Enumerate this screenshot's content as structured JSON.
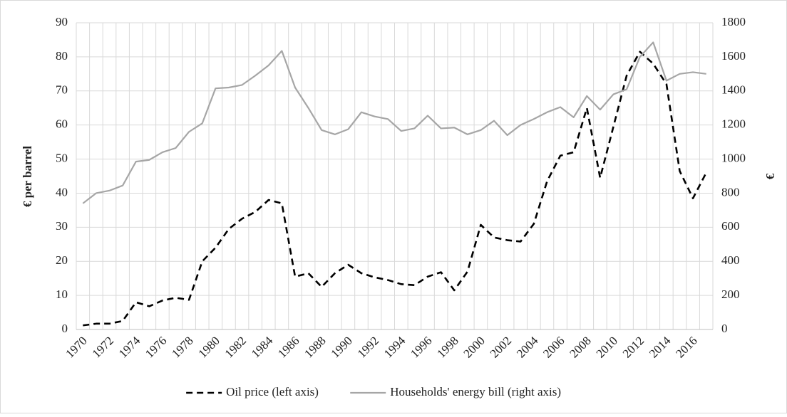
{
  "chart_data": {
    "type": "line",
    "y_label": "€ per barrel",
    "y2_label": "€",
    "categories": [
      "1970",
      null,
      "1972",
      null,
      "1974",
      null,
      "1976",
      null,
      "1978",
      null,
      "1980",
      null,
      "1982",
      null,
      "1984",
      null,
      "1986",
      null,
      "1988",
      null,
      "1990",
      null,
      "1992",
      null,
      "1994",
      null,
      "1996",
      null,
      "1998",
      null,
      "2000",
      null,
      "2002",
      null,
      "2004",
      null,
      "2006",
      null,
      "2008",
      null,
      "2010",
      null,
      "2012",
      null,
      "2014",
      null,
      "2016",
      null
    ],
    "series": [
      {
        "name": "Oil price (left axis)",
        "color": "#000000",
        "dashed": true,
        "axis": "y",
        "values": [
          1.2,
          1.7,
          1.7,
          2.5,
          8,
          6.8,
          8.5,
          9.3,
          8.7,
          20,
          24,
          29.5,
          32.5,
          34.5,
          38,
          37,
          15.5,
          16.5,
          12.5,
          16.5,
          19,
          16.5,
          15.3,
          14.5,
          13.3,
          13,
          15.5,
          16.8,
          11.5,
          17,
          30.7,
          27,
          26.2,
          25.8,
          31,
          43.5,
          51,
          52,
          65,
          44.5,
          59.5,
          74.5,
          81.5,
          78,
          72,
          46.5,
          38.5,
          46
        ]
      },
      {
        "name": "Households' energy bill (right axis)",
        "color": "#a6a6a6",
        "dashed": false,
        "axis": "y2",
        "values": [
          740,
          800,
          815,
          845,
          985,
          995,
          1040,
          1065,
          1160,
          1210,
          1415,
          1420,
          1435,
          1490,
          1550,
          1635,
          1420,
          1300,
          1170,
          1145,
          1175,
          1275,
          1250,
          1235,
          1165,
          1180,
          1255,
          1180,
          1185,
          1145,
          1170,
          1225,
          1140,
          1200,
          1235,
          1275,
          1305,
          1245,
          1370,
          1290,
          1380,
          1410,
          1600,
          1685,
          1460,
          1500,
          1510,
          1500
        ]
      }
    ],
    "ylim": [
      0,
      90
    ],
    "yticks": [
      0,
      10,
      20,
      30,
      40,
      50,
      60,
      70,
      80,
      90
    ],
    "y2lim": [
      0,
      1800
    ],
    "y2ticks": [
      0,
      200,
      400,
      600,
      800,
      1000,
      1200,
      1400,
      1600,
      1800
    ],
    "grid": true,
    "legend": "bottom"
  }
}
